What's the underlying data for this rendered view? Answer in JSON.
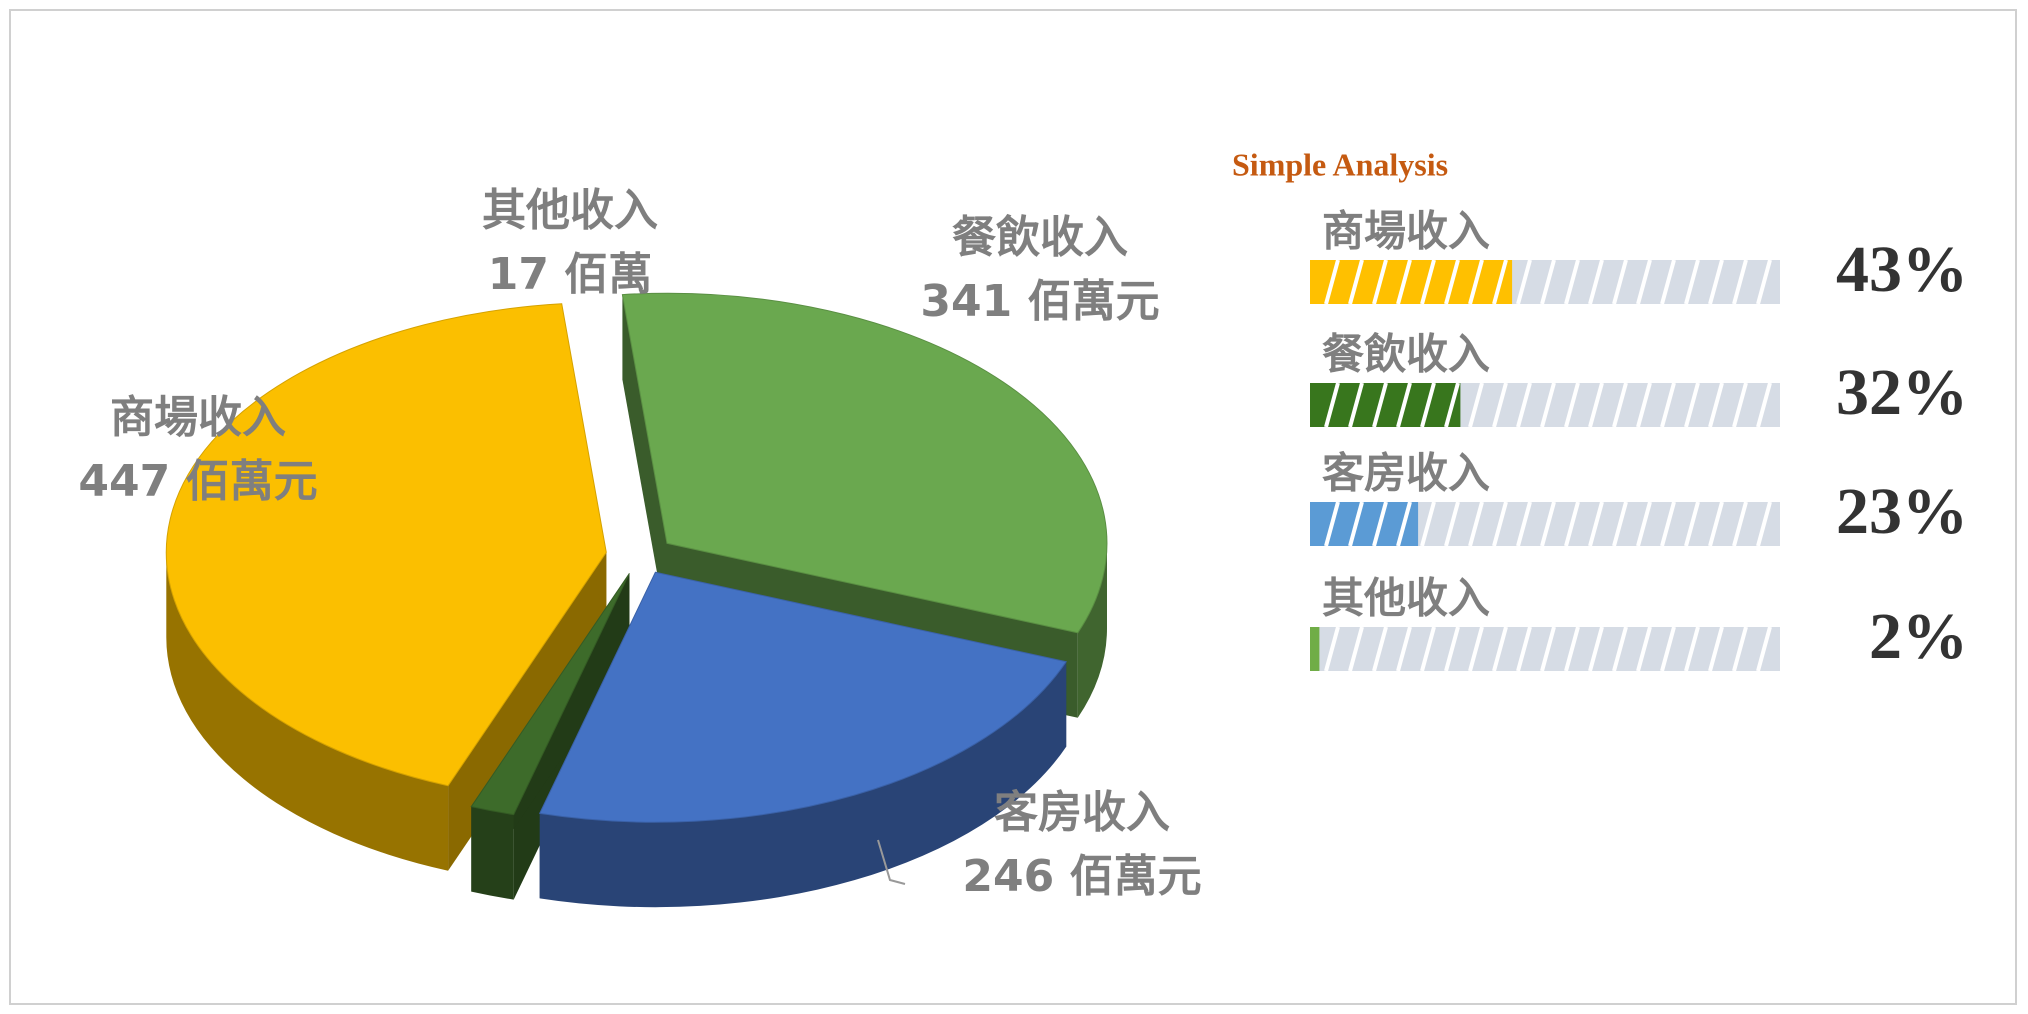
{
  "chart_data": [
    {
      "type": "pie",
      "categories": [
        "商場收入",
        "餐飲收入",
        "客房收入",
        "其他收入"
      ],
      "values": [
        447,
        341,
        246,
        17
      ],
      "value_labels": [
        "447 佰萬元",
        "341 佰萬元",
        "246 佰萬元",
        "17 佰萬"
      ],
      "colors": [
        "#fbbf00",
        "#6aa84f",
        "#4472c4",
        "#3d6b2a"
      ]
    },
    {
      "type": "bar",
      "title": "Simple Analysis",
      "categories": [
        "商場收入",
        "餐飲收入",
        "客房收入",
        "其他收入"
      ],
      "values": [
        43,
        32,
        23,
        2
      ],
      "value_labels": [
        "43%",
        "32%",
        "23%",
        "2%"
      ],
      "colors": [
        "#ffc000",
        "#38761d",
        "#5b9bd5",
        "#70ad47"
      ],
      "xlim": [
        0,
        100
      ]
    }
  ]
}
